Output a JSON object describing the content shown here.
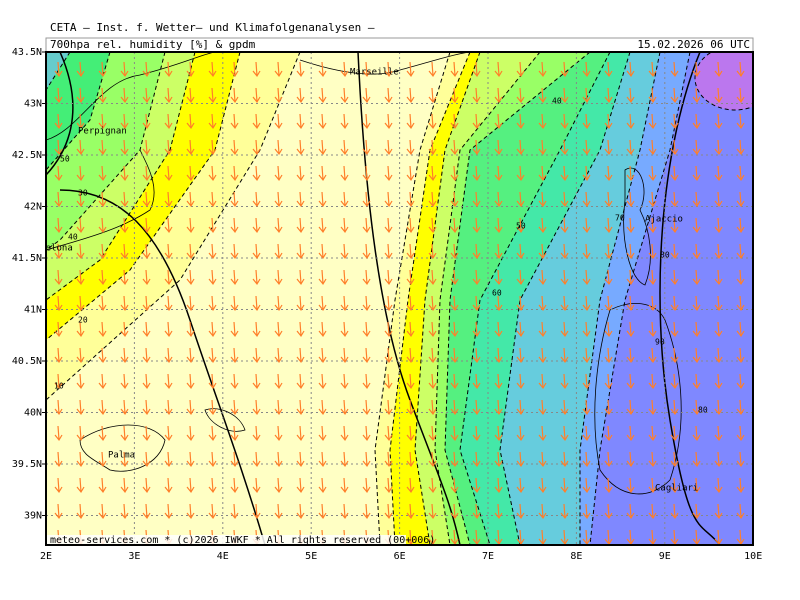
{
  "header": {
    "line1": "CETA – Inst. f. Wetter– und Klimafolgenanalysen –",
    "title_left": "700hpa rel. humidity [%] & gpdm",
    "title_right": "15.02.2026 06 UTC"
  },
  "lat_labels": [
    "43.5N",
    "43N",
    "42.5N",
    "42N",
    "41.5N",
    "41N",
    "40.5N",
    "40N",
    "39.5N",
    "39N"
  ],
  "lon_labels": [
    "2E",
    "3E",
    "4E",
    "5E",
    "6E",
    "7E",
    "8E",
    "9E",
    "10E"
  ],
  "cities": [
    "Marseille",
    "Perpignan",
    "Barcelona",
    "Ajaccio",
    "Palma",
    "Cagliari"
  ],
  "contour_labels": [
    "50",
    "30",
    "40",
    "20",
    "10",
    "40",
    "50",
    "60",
    "70",
    "80",
    "90",
    "80"
  ],
  "footer": "meteo-services.com * (c)2026 IWKF * All rights reserved (00+006)"
}
